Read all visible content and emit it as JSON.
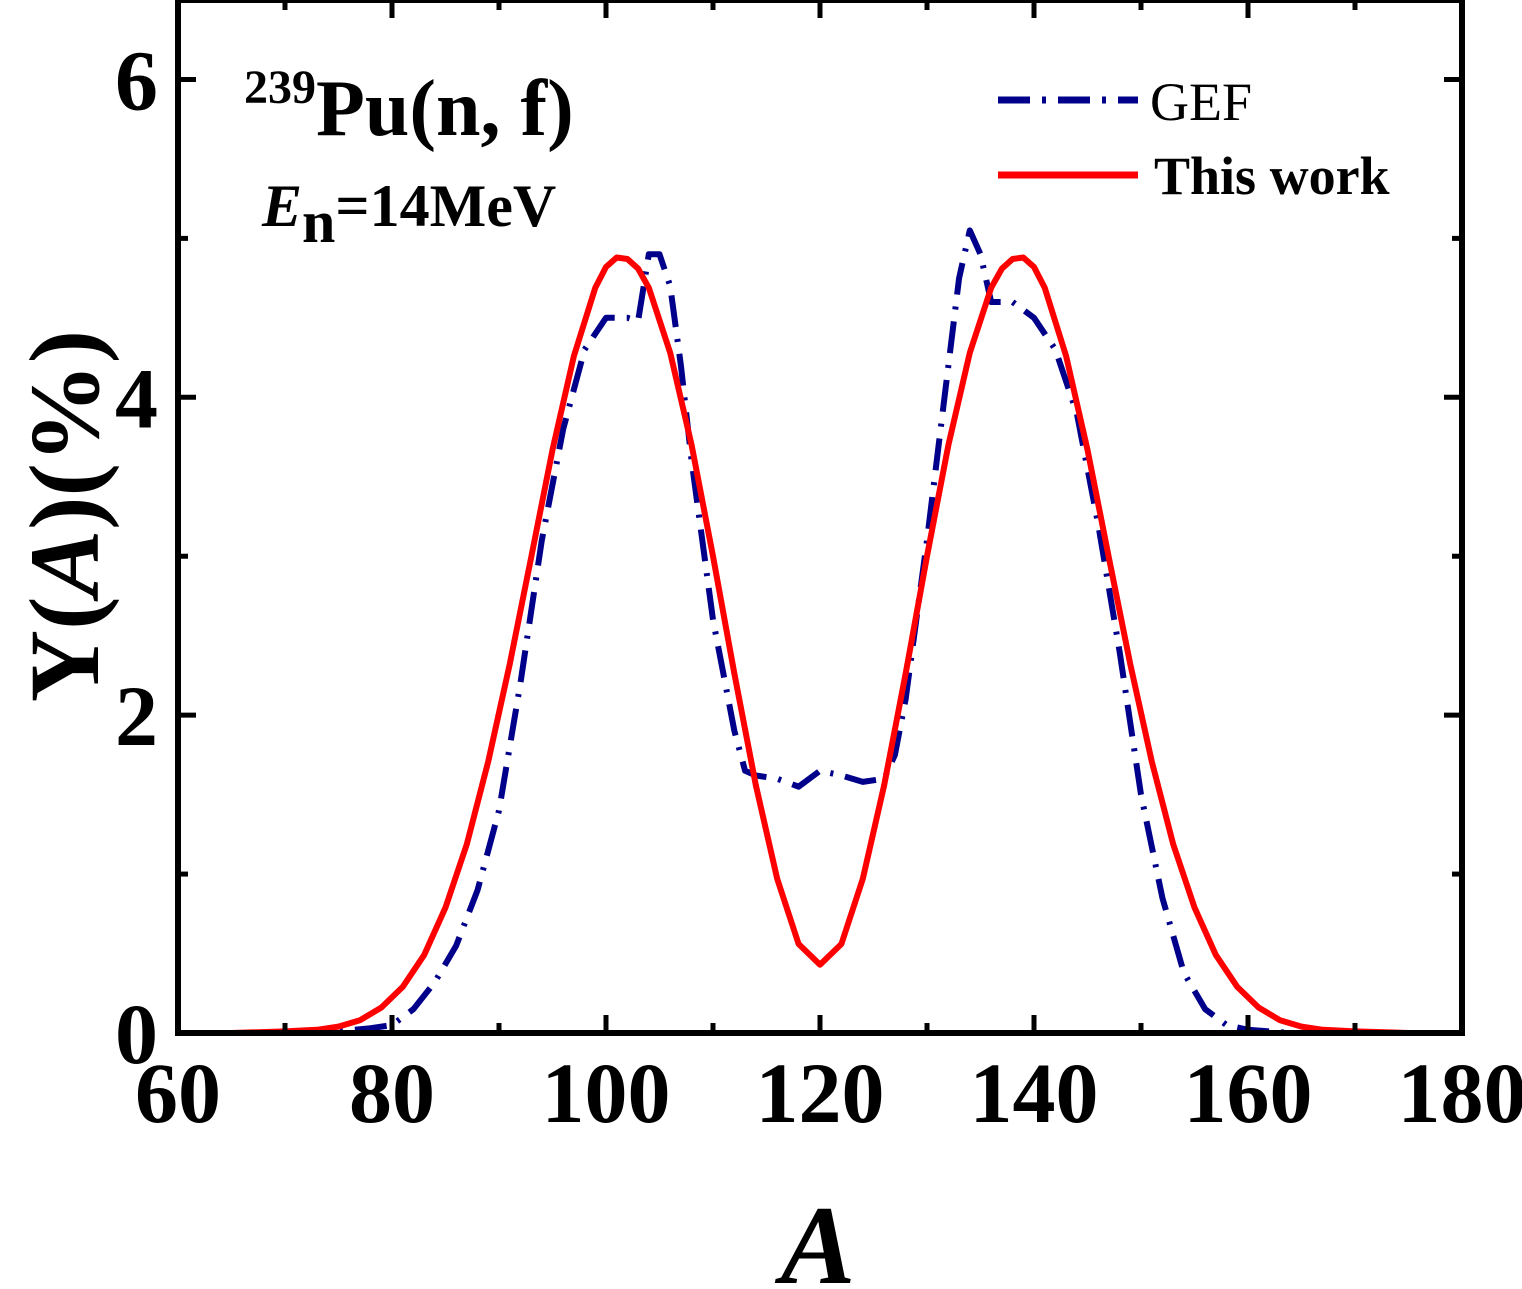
{
  "chart_data": {
    "type": "line",
    "annotations": {
      "reaction_superscript": "239",
      "reaction": "Pu(n, f)",
      "energy_symbol": "E",
      "energy_subscript": "n",
      "energy_value": "=14MeV"
    },
    "xlabel": "A",
    "ylabel_prefix": "Y(",
    "ylabel_italic": "A",
    "ylabel_suffix": ")(%)",
    "xlim": [
      60,
      180
    ],
    "ylim": [
      0,
      6.5
    ],
    "x_ticks": [
      60,
      80,
      100,
      120,
      140,
      160,
      180
    ],
    "y_ticks": [
      0,
      2,
      4,
      6
    ],
    "x_minor_step": 10,
    "y_minor_step": 1,
    "legend_position": "top-right",
    "series": [
      {
        "name": "GEF",
        "color": "#00008b",
        "style": "dash-dot",
        "x": [
          60,
          70,
          75,
          78,
          80,
          82,
          84,
          86,
          88,
          90,
          92,
          94,
          96,
          98,
          100,
          102,
          103,
          104,
          105,
          106,
          107,
          108,
          110,
          112,
          113,
          114,
          116,
          118,
          120,
          122,
          124,
          126,
          127,
          128,
          130,
          132,
          133,
          134,
          135,
          136,
          138,
          140,
          142,
          144,
          146,
          148,
          150,
          152,
          154,
          156,
          158,
          160,
          162,
          164,
          170,
          180
        ],
        "y": [
          0,
          0,
          0.01,
          0.03,
          0.05,
          0.15,
          0.32,
          0.55,
          0.9,
          1.4,
          2.2,
          3.1,
          3.8,
          4.3,
          4.5,
          4.5,
          4.48,
          4.9,
          4.9,
          4.7,
          4.2,
          3.6,
          2.6,
          1.9,
          1.65,
          1.62,
          1.6,
          1.55,
          1.65,
          1.62,
          1.58,
          1.6,
          1.75,
          2.1,
          3.1,
          4.2,
          4.75,
          5.05,
          4.9,
          4.6,
          4.6,
          4.5,
          4.3,
          3.9,
          3.2,
          2.4,
          1.5,
          0.85,
          0.38,
          0.15,
          0.05,
          0.02,
          0.01,
          0,
          0,
          0
        ]
      },
      {
        "name": "This work",
        "color": "#ff0000",
        "style": "solid",
        "x": [
          60,
          65,
          70,
          73,
          75,
          77,
          79,
          81,
          83,
          85,
          87,
          89,
          91,
          93,
          95,
          97,
          99,
          100,
          101,
          102,
          103,
          104,
          106,
          108,
          110,
          112,
          114,
          116,
          118,
          120,
          122,
          124,
          126,
          128,
          130,
          132,
          134,
          136,
          137,
          138,
          139,
          140,
          141,
          143,
          145,
          147,
          149,
          151,
          153,
          155,
          157,
          159,
          161,
          163,
          165,
          167,
          170,
          175,
          180
        ],
        "y": [
          0,
          0,
          0.01,
          0.02,
          0.04,
          0.08,
          0.16,
          0.29,
          0.49,
          0.79,
          1.19,
          1.71,
          2.32,
          2.99,
          3.67,
          4.26,
          4.69,
          4.82,
          4.88,
          4.87,
          4.81,
          4.69,
          4.28,
          3.7,
          3.0,
          2.26,
          1.56,
          0.97,
          0.56,
          0.43,
          0.56,
          0.97,
          1.56,
          2.26,
          3.0,
          3.7,
          4.28,
          4.69,
          4.81,
          4.87,
          4.88,
          4.82,
          4.69,
          4.26,
          3.67,
          2.99,
          2.32,
          1.71,
          1.19,
          0.79,
          0.49,
          0.29,
          0.16,
          0.08,
          0.04,
          0.02,
          0.01,
          0,
          0
        ]
      }
    ]
  }
}
